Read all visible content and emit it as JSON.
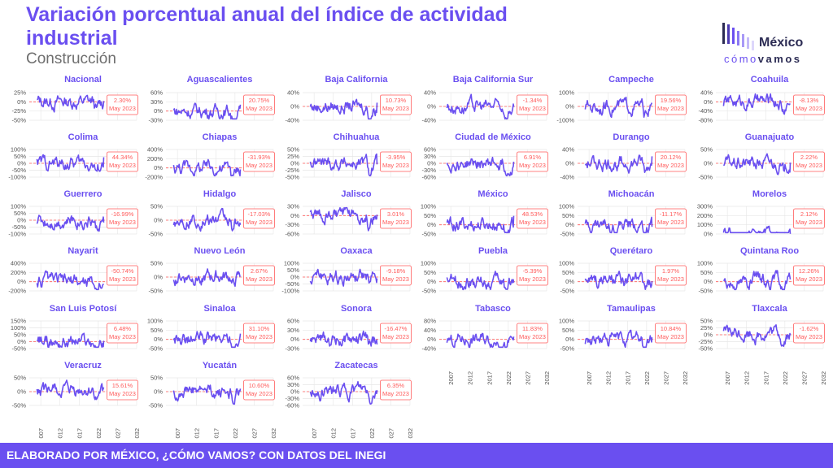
{
  "header": {
    "title": "Variación porcentual anual del índice de actividad industrial",
    "subtitle": "Construcción"
  },
  "logo": {
    "word": "México",
    "sub_a": "cómo",
    "sub_b": "vamos"
  },
  "footer": {
    "text": "ELABORADO POR MÉXICO, ¿CÓMO VAMOS? CON DATOS DEL INEGI"
  },
  "colors": {
    "accent": "#6a4ff0",
    "line": "#6a4ff0",
    "label": "#ff5b5b",
    "grid": "#e6e6e6",
    "axis_text": "#555555"
  },
  "chart_data": {
    "type": "line",
    "x_ticks": [
      "2007",
      "2012",
      "2017",
      "2022",
      "2027",
      "2032"
    ],
    "xlim": [
      2004,
      2032
    ],
    "label_date": "May 2023",
    "panels": [
      {
        "name": "Nacional",
        "yticks": [
          "25%",
          "0%",
          "-25%",
          "-50%"
        ],
        "ylim": [
          -50,
          25
        ],
        "last_value": "2.30%"
      },
      {
        "name": "Aguascalientes",
        "yticks": [
          "60%",
          "30%",
          "0%",
          "-30%"
        ],
        "ylim": [
          -30,
          60
        ],
        "last_value": "20.75%"
      },
      {
        "name": "Baja California",
        "yticks": [
          "40%",
          "0%",
          "-40%"
        ],
        "ylim": [
          -40,
          40
        ],
        "last_value": "10.73%"
      },
      {
        "name": "Baja California Sur",
        "yticks": [
          "40%",
          "0%",
          "-40%"
        ],
        "ylim": [
          -40,
          40
        ],
        "last_value": "-1.34%"
      },
      {
        "name": "Campeche",
        "yticks": [
          "100%",
          "0%",
          "-100%"
        ],
        "ylim": [
          -100,
          100
        ],
        "last_value": "19.56%"
      },
      {
        "name": "Coahuila",
        "yticks": [
          "40%",
          "0%",
          "-40%",
          "-80%"
        ],
        "ylim": [
          -80,
          40
        ],
        "last_value": "-8.13%"
      },
      {
        "name": "Colima",
        "yticks": [
          "100%",
          "50%",
          "0%",
          "-50%",
          "-100%"
        ],
        "ylim": [
          -100,
          100
        ],
        "last_value": "44.34%"
      },
      {
        "name": "Chiapas",
        "yticks": [
          "400%",
          "200%",
          "0%",
          "-200%"
        ],
        "ylim": [
          -200,
          400
        ],
        "last_value": "-31.93%"
      },
      {
        "name": "Chihuahua",
        "yticks": [
          "50%",
          "25%",
          "0%",
          "-25%",
          "-50%"
        ],
        "ylim": [
          -50,
          50
        ],
        "last_value": "-3.95%"
      },
      {
        "name": "Ciudad de México",
        "yticks": [
          "60%",
          "30%",
          "0%",
          "-30%",
          "-60%"
        ],
        "ylim": [
          -60,
          60
        ],
        "last_value": "6.91%"
      },
      {
        "name": "Durango",
        "yticks": [
          "40%",
          "0%",
          "-40%"
        ],
        "ylim": [
          -40,
          40
        ],
        "last_value": "20.12%"
      },
      {
        "name": "Guanajuato",
        "yticks": [
          "50%",
          "0%",
          "-50%"
        ],
        "ylim": [
          -50,
          50
        ],
        "last_value": "2.22%"
      },
      {
        "name": "Guerrero",
        "yticks": [
          "100%",
          "50%",
          "0%",
          "-50%",
          "-100%"
        ],
        "ylim": [
          -100,
          100
        ],
        "last_value": "-16.99%"
      },
      {
        "name": "Hidalgo",
        "yticks": [
          "50%",
          "0%",
          "-50%"
        ],
        "ylim": [
          -50,
          50
        ],
        "last_value": "-17.03%"
      },
      {
        "name": "Jalisco",
        "yticks": [
          "30%",
          "0%",
          "-30%",
          "-60%"
        ],
        "ylim": [
          -60,
          30
        ],
        "last_value": "3.01%"
      },
      {
        "name": "México",
        "yticks": [
          "100%",
          "50%",
          "0%",
          "-50%"
        ],
        "ylim": [
          -50,
          100
        ],
        "last_value": "48.53%"
      },
      {
        "name": "Michoacán",
        "yticks": [
          "100%",
          "50%",
          "0%",
          "-50%"
        ],
        "ylim": [
          -50,
          100
        ],
        "last_value": "-11.17%"
      },
      {
        "name": "Morelos",
        "yticks": [
          "300%",
          "200%",
          "100%",
          "0%"
        ],
        "ylim": [
          0,
          300
        ],
        "last_value": "2.12%"
      },
      {
        "name": "Nayarit",
        "yticks": [
          "400%",
          "200%",
          "0%",
          "-200%"
        ],
        "ylim": [
          -200,
          400
        ],
        "last_value": "-50.74%"
      },
      {
        "name": "Nuevo León",
        "yticks": [
          "50%",
          "0%",
          "-50%"
        ],
        "ylim": [
          -50,
          50
        ],
        "last_value": "2.67%"
      },
      {
        "name": "Oaxaca",
        "yticks": [
          "100%",
          "50%",
          "0%",
          "-50%",
          "-100%"
        ],
        "ylim": [
          -100,
          100
        ],
        "last_value": "-9.18%"
      },
      {
        "name": "Puebla",
        "yticks": [
          "100%",
          "50%",
          "0%",
          "-50%"
        ],
        "ylim": [
          -50,
          100
        ],
        "last_value": "-5.39%"
      },
      {
        "name": "Querétaro",
        "yticks": [
          "100%",
          "50%",
          "0%",
          "-50%"
        ],
        "ylim": [
          -50,
          100
        ],
        "last_value": "1.97%"
      },
      {
        "name": "Quintana Roo",
        "yticks": [
          "100%",
          "50%",
          "0%",
          "-50%"
        ],
        "ylim": [
          -50,
          100
        ],
        "last_value": "12.26%"
      },
      {
        "name": "San Luis Potosí",
        "yticks": [
          "150%",
          "100%",
          "50%",
          "0%",
          "-50%"
        ],
        "ylim": [
          -50,
          150
        ],
        "last_value": "6.48%"
      },
      {
        "name": "Sinaloa",
        "yticks": [
          "100%",
          "50%",
          "0%",
          "-50%"
        ],
        "ylim": [
          -50,
          100
        ],
        "last_value": "31.10%"
      },
      {
        "name": "Sonora",
        "yticks": [
          "60%",
          "30%",
          "0%",
          "-30%"
        ],
        "ylim": [
          -30,
          60
        ],
        "last_value": "-16.47%"
      },
      {
        "name": "Tabasco",
        "yticks": [
          "80%",
          "40%",
          "0%",
          "-40%"
        ],
        "ylim": [
          -40,
          80
        ],
        "last_value": "11.83%"
      },
      {
        "name": "Tamaulipas",
        "yticks": [
          "100%",
          "50%",
          "0%",
          "-50%"
        ],
        "ylim": [
          -50,
          100
        ],
        "last_value": "10.84%"
      },
      {
        "name": "Tlaxcala",
        "yticks": [
          "50%",
          "25%",
          "0%",
          "-25%",
          "-50%"
        ],
        "ylim": [
          -50,
          50
        ],
        "last_value": "-1.62%"
      },
      {
        "name": "Veracruz",
        "yticks": [
          "50%",
          "0%",
          "-50%"
        ],
        "ylim": [
          -50,
          50
        ],
        "last_value": "15.61%"
      },
      {
        "name": "Yucatán",
        "yticks": [
          "50%",
          "0%",
          "-50%"
        ],
        "ylim": [
          -50,
          50
        ],
        "last_value": "10.60%"
      },
      {
        "name": "Zacatecas",
        "yticks": [
          "60%",
          "30%",
          "0%",
          "-30%",
          "-60%"
        ],
        "ylim": [
          -60,
          60
        ],
        "last_value": "6.35%"
      }
    ]
  }
}
